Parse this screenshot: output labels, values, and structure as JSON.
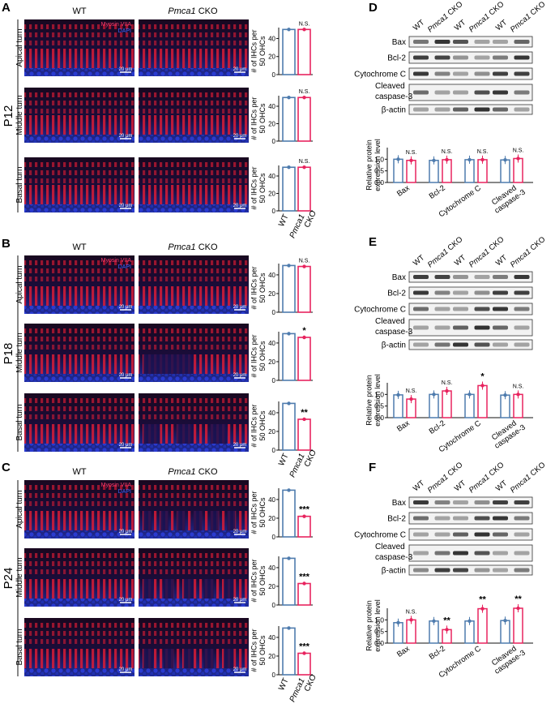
{
  "colors": {
    "wt": "#4f7cae",
    "cko": "#e8245f",
    "red_channel": "#d81428",
    "blue_channel": "#1a2aa8",
    "myosin": "#ff3b6b",
    "dapi": "#3f64ff"
  },
  "header": {
    "wt": "WT",
    "cko_gene": "Pmca1",
    "cko_suffix": " CKO"
  },
  "stain": {
    "myosin": "Myosin VIIA",
    "dapi": "DAPI"
  },
  "turns": [
    "Apical turn",
    "Middle turn",
    "Basal turn"
  ],
  "scale_bar": "20 μm",
  "ylabel_lines": [
    "# of IHCs per",
    "50 OHCs"
  ],
  "panels": [
    {
      "letter": "A",
      "age": "P12"
    },
    {
      "letter": "B",
      "age": "P18"
    },
    {
      "letter": "C",
      "age": "P24"
    }
  ],
  "chart_data": [
    {
      "type": "bar",
      "panel": "A",
      "row": "Apical turn",
      "categories": [
        "WT",
        "Pmca1 CKO"
      ],
      "values": [
        50,
        50
      ],
      "ylim": [
        0,
        50
      ],
      "yticks": [
        0,
        20,
        40
      ],
      "sig": "N.S."
    },
    {
      "type": "bar",
      "panel": "A",
      "row": "Middle turn",
      "categories": [
        "WT",
        "Pmca1 CKO"
      ],
      "values": [
        50,
        50
      ],
      "ylim": [
        0,
        50
      ],
      "yticks": [
        0,
        20,
        40
      ],
      "sig": "N.S."
    },
    {
      "type": "bar",
      "panel": "A",
      "row": "Basal turn",
      "categories": [
        "WT",
        "Pmca1 CKO"
      ],
      "values": [
        50,
        50
      ],
      "ylim": [
        0,
        50
      ],
      "yticks": [
        0,
        20,
        40
      ],
      "sig": "N.S."
    },
    {
      "type": "bar",
      "panel": "B",
      "row": "Apical turn",
      "categories": [
        "WT",
        "Pmca1 CKO"
      ],
      "values": [
        50,
        49
      ],
      "ylim": [
        0,
        50
      ],
      "yticks": [
        0,
        20,
        40
      ],
      "sig": "N.S."
    },
    {
      "type": "bar",
      "panel": "B",
      "row": "Middle turn",
      "categories": [
        "WT",
        "Pmca1 CKO"
      ],
      "values": [
        50,
        46
      ],
      "ylim": [
        0,
        50
      ],
      "yticks": [
        0,
        20,
        40
      ],
      "sig": "*"
    },
    {
      "type": "bar",
      "panel": "B",
      "row": "Basal turn",
      "categories": [
        "WT",
        "Pmca1 CKO"
      ],
      "values": [
        50,
        33
      ],
      "ylim": [
        0,
        50
      ],
      "yticks": [
        0,
        20,
        40
      ],
      "sig": "**"
    },
    {
      "type": "bar",
      "panel": "C",
      "row": "Apical turn",
      "categories": [
        "WT",
        "Pmca1 CKO"
      ],
      "values": [
        50,
        22
      ],
      "ylim": [
        0,
        50
      ],
      "yticks": [
        0,
        20,
        40
      ],
      "sig": "***"
    },
    {
      "type": "bar",
      "panel": "C",
      "row": "Middle turn",
      "categories": [
        "WT",
        "Pmca1 CKO"
      ],
      "values": [
        50,
        23
      ],
      "ylim": [
        0,
        50
      ],
      "yticks": [
        0,
        20,
        40
      ],
      "sig": "***"
    },
    {
      "type": "bar",
      "panel": "C",
      "row": "Basal turn",
      "categories": [
        "WT",
        "Pmca1 CKO"
      ],
      "values": [
        50,
        23
      ],
      "ylim": [
        0,
        50
      ],
      "yticks": [
        0,
        20,
        40
      ],
      "sig": "***"
    },
    {
      "type": "bar",
      "panel": "D",
      "categories": [
        "Bax",
        "Bcl-2",
        "Cytochrome C",
        "Cleaved caspase-3"
      ],
      "ylabel": [
        "Relative protein",
        "expression level"
      ],
      "ylim": [
        0,
        1.5
      ],
      "yticks": [
        0.0,
        0.5,
        1.0
      ],
      "series": [
        {
          "name": "WT",
          "values": [
            1.0,
            0.95,
            0.98,
            0.97
          ]
        },
        {
          "name": "Pmca1 CKO",
          "values": [
            0.95,
            0.98,
            0.98,
            1.03
          ]
        }
      ],
      "sig": [
        "N.S.",
        "N.S.",
        "N.S.",
        "N.S."
      ]
    },
    {
      "type": "bar",
      "panel": "E",
      "categories": [
        "Bax",
        "Bcl-2",
        "Cytochrome C",
        "Cleaved caspase-3"
      ],
      "ylabel": [
        "Relative protein",
        "expression level"
      ],
      "ylim": [
        0,
        1.5
      ],
      "yticks": [
        0.0,
        0.5,
        1.0
      ],
      "series": [
        {
          "name": "WT",
          "values": [
            0.98,
            1.0,
            1.0,
            0.97
          ]
        },
        {
          "name": "Pmca1 CKO",
          "values": [
            0.8,
            1.15,
            1.38,
            1.0
          ]
        }
      ],
      "sig": [
        "N.S.",
        "N.S.",
        "*",
        "N.S."
      ]
    },
    {
      "type": "bar",
      "panel": "F",
      "categories": [
        "Bax",
        "Bcl-2",
        "Cytochrome C",
        "Cleaved caspase-3"
      ],
      "ylabel": [
        "Relative protein",
        "expression level"
      ],
      "ylim": [
        0,
        1.5
      ],
      "yticks": [
        0.0,
        0.5,
        1.0
      ],
      "series": [
        {
          "name": "WT",
          "values": [
            0.88,
            0.95,
            0.95,
            0.97
          ]
        },
        {
          "name": "Pmca1 CKO",
          "values": [
            1.0,
            0.58,
            1.48,
            1.5
          ]
        }
      ],
      "sig": [
        "N.S.",
        "**",
        "**",
        "**"
      ]
    }
  ],
  "blots": [
    {
      "letter": "D",
      "labels": [
        "Bax",
        "Bcl-2",
        "Cytochrome C",
        "Cleaved",
        "caspase-3",
        "β-actin"
      ]
    },
    {
      "letter": "E",
      "labels": [
        "Bax",
        "Bcl-2",
        "Cytochrome C",
        "Cleaved",
        "caspase-3",
        "β-actin"
      ]
    },
    {
      "letter": "F",
      "labels": [
        "Bax",
        "Bcl-2",
        "Cytochrome C",
        "Cleaved",
        "caspase-3",
        "β-actin"
      ]
    }
  ]
}
